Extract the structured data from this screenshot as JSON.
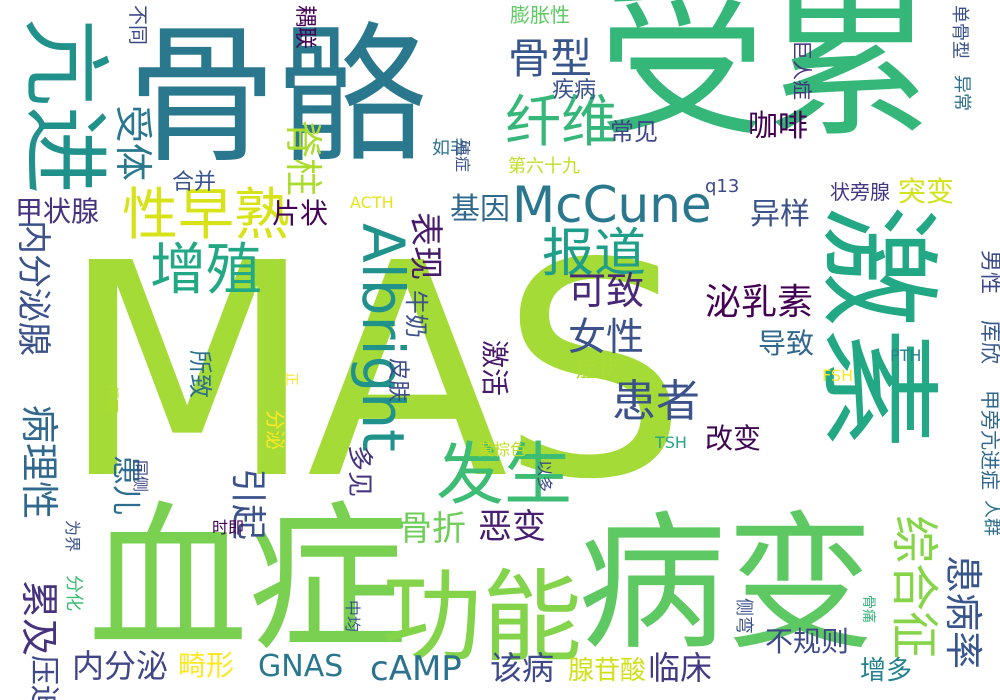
{
  "words": [
    {
      "text": "MAS",
      "color": "#a5db36"
    },
    {
      "text": "受累",
      "color": "#35b779"
    },
    {
      "text": "骨骼",
      "color": "#2a788e"
    },
    {
      "text": "血症",
      "color": "#7ad151"
    },
    {
      "text": "病变",
      "color": "#5ec962"
    },
    {
      "text": "激素",
      "color": "#22a884"
    },
    {
      "text": "亢进",
      "color": "#21918c"
    },
    {
      "text": "功能",
      "color": "#84d44b"
    },
    {
      "text": "McCune",
      "color": "#2a788e"
    },
    {
      "text": "Albright",
      "color": "#21918c"
    },
    {
      "text": "发生",
      "color": "#3dbc74"
    },
    {
      "text": "综合征",
      "color": "#86d549"
    },
    {
      "text": "性早熟",
      "color": "#d8e219"
    },
    {
      "text": "纤维",
      "color": "#35b779"
    },
    {
      "text": "增殖",
      "color": "#22a884"
    },
    {
      "text": "报道",
      "color": "#1f9e89"
    },
    {
      "text": "骨型",
      "color": "#39568c"
    },
    {
      "text": "患者",
      "color": "#3b528b"
    },
    {
      "text": "受体",
      "color": "#2a788e"
    },
    {
      "text": "脊柱",
      "color": "#addc30"
    },
    {
      "text": "可致",
      "color": "#482878"
    },
    {
      "text": "女性",
      "color": "#3b528b"
    },
    {
      "text": "泌乳素",
      "color": "#440154"
    },
    {
      "text": "患病率",
      "color": "#39568c"
    },
    {
      "text": "病理性",
      "color": "#31688e"
    },
    {
      "text": "累及",
      "color": "#46327e"
    },
    {
      "text": "压迫",
      "color": "#3e4989"
    },
    {
      "text": "内分泌腺",
      "color": "#3b528b"
    },
    {
      "text": "内分泌",
      "color": "#404688"
    },
    {
      "text": "GNAS",
      "color": "#2a788e"
    },
    {
      "text": "cAMP",
      "color": "#2c728e"
    },
    {
      "text": "该病",
      "color": "#3e4989"
    },
    {
      "text": "临床",
      "color": "#443a83"
    },
    {
      "text": "腺苷酸",
      "color": "#d0e11c"
    },
    {
      "text": "不规则",
      "color": "#3e4989"
    },
    {
      "text": "增多",
      "color": "#26828e"
    },
    {
      "text": "畸形",
      "color": "#fde725"
    },
    {
      "text": "骨折",
      "color": "#6ece58"
    },
    {
      "text": "恶变",
      "color": "#481f70"
    },
    {
      "text": "引起",
      "color": "#3b528b"
    },
    {
      "text": "表现",
      "color": "#481a6c"
    },
    {
      "text": "基因",
      "color": "#31688e"
    },
    {
      "text": "异样",
      "color": "#3b528b"
    },
    {
      "text": "突变",
      "color": "#d2e21b"
    },
    {
      "text": "甲状腺",
      "color": "#46327e"
    },
    {
      "text": "片状",
      "color": "#450457"
    },
    {
      "text": "咖啡",
      "color": "#440154"
    },
    {
      "text": "导致",
      "color": "#31688e"
    },
    {
      "text": "改变",
      "color": "#3e0751"
    },
    {
      "text": "患儿",
      "color": "#2e6d8e"
    },
    {
      "text": "常见",
      "color": "#3f4788"
    },
    {
      "text": "激活",
      "color": "#48186a"
    },
    {
      "text": "所致",
      "color": "#2d708e"
    },
    {
      "text": "多见",
      "color": "#46337f"
    },
    {
      "text": "牛奶",
      "color": "#3b528b"
    },
    {
      "text": "皮肤",
      "color": "#3e4c8a"
    },
    {
      "text": "症状",
      "color": "#aadc32"
    },
    {
      "text": "合并",
      "color": "#3a548c"
    },
    {
      "text": "疾病",
      "color": "#3b528b"
    },
    {
      "text": "耦联",
      "color": "#440154"
    },
    {
      "text": "膨胀性",
      "color": "#5ec962"
    },
    {
      "text": "不同",
      "color": "#3e4989"
    },
    {
      "text": "巨人症",
      "color": "#46337f"
    },
    {
      "text": "单骨型",
      "color": "#3b528b"
    },
    {
      "text": "异常",
      "color": "#2d708e"
    },
    {
      "text": "库欣",
      "color": "#38598c"
    },
    {
      "text": "男性",
      "color": "#3e4989"
    },
    {
      "text": "甲旁亢进症",
      "color": "#31688e"
    },
    {
      "text": "人群",
      "color": "#2d708e"
    },
    {
      "text": "状旁腺",
      "color": "#453781"
    },
    {
      "text": "q13",
      "color": "#3e4989"
    },
    {
      "text": "第六十九",
      "color": "#c2df23"
    },
    {
      "text": "如非",
      "color": "#2c728e"
    },
    {
      "text": "殖症",
      "color": "#3b528b"
    },
    {
      "text": "ACTH",
      "color": "#e5e419"
    },
    {
      "text": "PTH",
      "color": "#26828e"
    },
    {
      "text": "FSH",
      "color": "#fde725"
    },
    {
      "text": "TSH",
      "color": "#22a884"
    },
    {
      "text": "黄棕色",
      "color": "#c0df25"
    },
    {
      "text": "以多",
      "color": "#3e4989"
    },
    {
      "text": "时即",
      "color": "#440154"
    },
    {
      "text": "为界",
      "color": "#3b528b"
    },
    {
      "text": "分化",
      "color": "#3dbc74"
    },
    {
      "text": "中均",
      "color": "#39568c"
    },
    {
      "text": "同侧",
      "color": "#3f4788"
    },
    {
      "text": "颅面",
      "color": "#addc30"
    },
    {
      "text": "分泌",
      "color": "#fde725"
    },
    {
      "text": "正",
      "color": "#fde725"
    },
    {
      "text": "侧弯",
      "color": "#3b528b"
    },
    {
      "text": "骨痛",
      "color": "#35b779"
    }
  ]
}
